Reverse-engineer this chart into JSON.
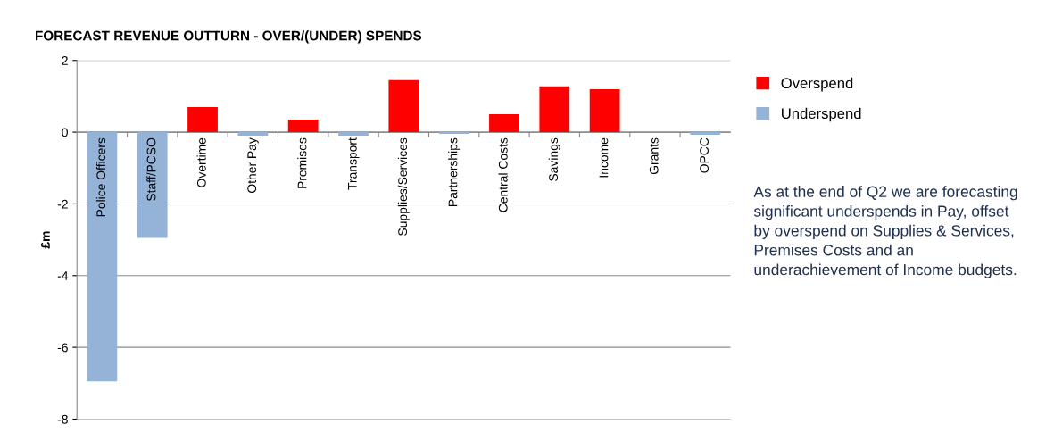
{
  "chart_data": {
    "type": "bar",
    "title": "FORECAST REVENUE OUTTURN - OVER/(UNDER) SPENDS",
    "ylabel": "£m",
    "categories": [
      "Police Officers",
      "Staff/PCSO",
      "Overtime",
      "Other Pay",
      "Premises",
      "Transport",
      "Supplies/Services",
      "Partnerships",
      "Central Costs",
      "Savings",
      "Income",
      "Grants",
      "OPCC"
    ],
    "series": [
      {
        "name": "Overspend",
        "color": "#ff0000",
        "values": [
          null,
          null,
          0.7,
          null,
          0.35,
          null,
          1.45,
          null,
          0.5,
          1.28,
          1.2,
          0,
          null
        ]
      },
      {
        "name": "Underspend",
        "color": "#95b3d7",
        "values": [
          -6.95,
          -2.95,
          null,
          -0.1,
          null,
          -0.1,
          null,
          -0.05,
          null,
          null,
          null,
          null,
          -0.07
        ]
      }
    ],
    "ylim": [
      -8,
      2
    ],
    "yticks": [
      -8,
      -6,
      -4,
      -2,
      0,
      2
    ],
    "grid": "y",
    "legend": "right",
    "annotations": [
      "As at the end of Q2 we are forecasting significant underspends in Pay, offset by overspend on Supplies & Services, Premises Costs and an underachievement of Income budgets."
    ]
  }
}
